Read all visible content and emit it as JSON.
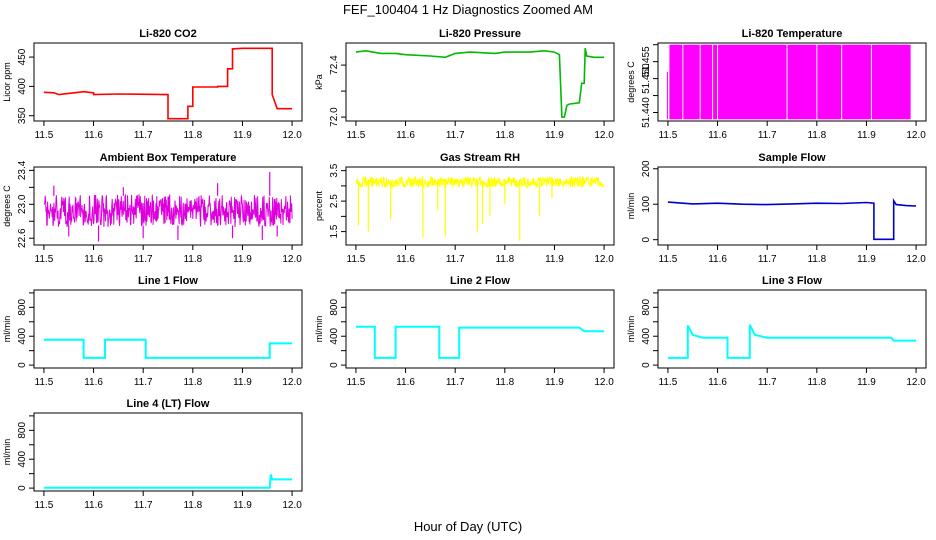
{
  "page": {
    "title": "FEF_100404  1 Hz Diagnostics Zoomed AM",
    "xlabel": "Hour of Day (UTC)"
  },
  "chart_data": [
    {
      "type": "line",
      "title": "Li-820 CO2",
      "ylabel": "Licor ppm",
      "color": "#ff0000",
      "xlim": [
        11.5,
        12.0
      ],
      "ylim": [
        341,
        474
      ],
      "xticks": [
        11.5,
        11.6,
        11.7,
        11.8,
        11.9,
        12.0
      ],
      "yticks": [
        350,
        400,
        450
      ],
      "ytick_labels": [
        "350",
        "400",
        "450"
      ],
      "series": [
        {
          "x": [
            11.5,
            11.52,
            11.53,
            11.57,
            11.58,
            11.6,
            11.6,
            11.65,
            11.75,
            11.75,
            11.76,
            11.79,
            11.79,
            11.8,
            11.8,
            11.85,
            11.85,
            11.87,
            11.87,
            11.88,
            11.88,
            11.9,
            11.96,
            11.96,
            11.97,
            12.0
          ],
          "y": [
            390,
            389,
            386,
            390,
            391,
            389,
            386,
            387,
            386,
            345,
            345,
            345,
            366,
            366,
            399,
            399,
            400,
            400,
            430,
            430,
            464,
            465,
            465,
            386,
            362,
            362
          ]
        }
      ]
    },
    {
      "type": "line",
      "title": "Li-820 Pressure",
      "ylabel": "kPa",
      "color": "#00bb00",
      "xlim": [
        11.5,
        12.0
      ],
      "ylim": [
        71.97,
        72.57
      ],
      "xticks": [
        11.5,
        11.6,
        11.7,
        11.8,
        11.9,
        12.0
      ],
      "yticks": [
        72.0,
        72.2,
        72.4
      ],
      "ytick_labels": [
        "72.0",
        "",
        "72.4"
      ],
      "series": [
        {
          "x": [
            11.5,
            11.52,
            11.55,
            11.58,
            11.6,
            11.65,
            11.68,
            11.7,
            11.73,
            11.78,
            11.8,
            11.85,
            11.88,
            11.9,
            11.91,
            11.915,
            11.92,
            11.925,
            11.93,
            11.95,
            11.955,
            11.96,
            11.962,
            11.965,
            11.98,
            12.0
          ],
          "y": [
            72.5,
            72.51,
            72.49,
            72.49,
            72.48,
            72.47,
            72.46,
            72.49,
            72.5,
            72.49,
            72.5,
            72.5,
            72.51,
            72.5,
            72.48,
            72.0,
            72.0,
            72.09,
            72.1,
            72.11,
            72.26,
            72.26,
            72.53,
            72.47,
            72.46,
            72.46
          ]
        }
      ]
    },
    {
      "type": "area",
      "title": "Li-820 Temperature",
      "ylabel": "degrees C",
      "color": "#ff00ff",
      "xlim": [
        11.5,
        12.0
      ],
      "ylim": [
        51.4375,
        51.4605
      ],
      "xticks": [
        11.5,
        11.6,
        11.7,
        11.8,
        11.9,
        12.0
      ],
      "yticks": [
        51.44,
        51.445,
        51.45,
        51.455,
        51.46
      ],
      "ytick_labels": [
        "51.440",
        "",
        "51.450",
        "51.455",
        ""
      ],
      "series": [
        {
          "x": [
            11.503,
            11.99
          ],
          "y": [
            51.438,
            51.46
          ],
          "gaps_x": [
            11.53,
            11.565,
            11.59,
            11.6,
            11.74,
            11.8,
            11.85,
            11.91,
            11.99
          ]
        }
      ]
    },
    {
      "type": "line",
      "title": "Ambient Box Temperature",
      "ylabel": "degrees C",
      "color": "#dd00dd",
      "xlim": [
        11.5,
        12.0
      ],
      "ylim": [
        22.52,
        23.44
      ],
      "xticks": [
        11.5,
        11.6,
        11.7,
        11.8,
        11.9,
        12.0
      ],
      "yticks": [
        22.6,
        22.8,
        23.0,
        23.2,
        23.4
      ],
      "ytick_labels": [
        "22.6",
        "",
        "23.0",
        "",
        "23.4"
      ],
      "series": [
        {
          "x": [
            11.5,
            12.0
          ],
          "y": [
            22.75,
            23.1
          ],
          "spikes": [
            [
              11.52,
              23.22
            ],
            [
              11.55,
              22.62
            ],
            [
              11.61,
              22.56
            ],
            [
              11.66,
              23.2
            ],
            [
              11.7,
              22.6
            ],
            [
              11.77,
              22.58
            ],
            [
              11.85,
              23.25
            ],
            [
              11.88,
              22.6
            ],
            [
              11.94,
              22.58
            ],
            [
              11.955,
              23.38
            ],
            [
              11.97,
              22.62
            ]
          ]
        }
      ]
    },
    {
      "type": "line",
      "title": "Gas Stream RH",
      "ylabel": "percent",
      "color": "#ffff00",
      "xlim": [
        11.5,
        12.0
      ],
      "ylim": [
        1.06,
        3.62
      ],
      "xticks": [
        11.5,
        11.6,
        11.7,
        11.8,
        11.9,
        12.0
      ],
      "yticks": [
        1.5,
        2.0,
        2.5,
        3.0,
        3.5
      ],
      "ytick_labels": [
        "1.5",
        "",
        "2.5",
        "",
        "3.5"
      ],
      "series": [
        {
          "x": [
            11.5,
            12.0
          ],
          "y": [
            2.95,
            3.3
          ],
          "dips": [
            [
              11.505,
              1.7
            ],
            [
              11.525,
              1.5
            ],
            [
              11.57,
              1.9
            ],
            [
              11.635,
              1.3
            ],
            [
              11.665,
              2.2
            ],
            [
              11.68,
              1.35
            ],
            [
              11.745,
              1.5
            ],
            [
              11.755,
              1.75
            ],
            [
              11.77,
              2.0
            ],
            [
              11.8,
              2.4
            ],
            [
              11.83,
              1.2
            ],
            [
              11.87,
              2.0
            ],
            [
              11.895,
              2.6
            ]
          ]
        }
      ]
    },
    {
      "type": "line",
      "title": "Sample Flow",
      "ylabel": "ml/min",
      "color": "#0000cc",
      "xlim": [
        11.5,
        12.0
      ],
      "ylim": [
        -15,
        205
      ],
      "xticks": [
        11.5,
        11.6,
        11.7,
        11.8,
        11.9,
        12.0
      ],
      "yticks": [
        0,
        100,
        200
      ],
      "ytick_labels": [
        "0",
        "100",
        "200"
      ],
      "series": [
        {
          "x": [
            11.5,
            11.52,
            11.55,
            11.6,
            11.65,
            11.7,
            11.75,
            11.8,
            11.85,
            11.9,
            11.915,
            11.915,
            11.955,
            11.955,
            11.96,
            11.98,
            12.0
          ],
          "y": [
            106,
            104,
            101,
            103,
            100,
            99,
            101,
            103,
            102,
            105,
            103,
            1,
            1,
            110,
            99,
            96,
            95
          ]
        }
      ]
    },
    {
      "type": "line",
      "title": "Line 1 Flow",
      "ylabel": "ml/min",
      "color": "#00ffff",
      "xlim": [
        11.5,
        12.0
      ],
      "ylim": [
        -40,
        1040
      ],
      "xticks": [
        11.5,
        11.6,
        11.7,
        11.8,
        11.9,
        12.0
      ],
      "yticks": [
        0,
        200,
        400,
        600,
        800,
        1000
      ],
      "ytick_labels": [
        "0",
        "",
        "400",
        "",
        "800",
        ""
      ],
      "series": [
        {
          "x": [
            11.5,
            11.58,
            11.58,
            11.623,
            11.623,
            11.705,
            11.705,
            11.955,
            11.955,
            12.0
          ],
          "y": [
            350,
            350,
            100,
            100,
            350,
            350,
            100,
            100,
            300,
            300
          ]
        }
      ]
    },
    {
      "type": "line",
      "title": "Line 2 Flow",
      "ylabel": "ml/min",
      "color": "#00ffff",
      "xlim": [
        11.5,
        12.0
      ],
      "ylim": [
        -40,
        1040
      ],
      "xticks": [
        11.5,
        11.6,
        11.7,
        11.8,
        11.9,
        12.0
      ],
      "yticks": [
        0,
        200,
        400,
        600,
        800,
        1000
      ],
      "ytick_labels": [
        "0",
        "",
        "400",
        "",
        "800",
        ""
      ],
      "series": [
        {
          "x": [
            11.5,
            11.538,
            11.538,
            11.58,
            11.58,
            11.668,
            11.668,
            11.708,
            11.708,
            11.95,
            11.96,
            12.0
          ],
          "y": [
            530,
            530,
            100,
            100,
            530,
            530,
            100,
            100,
            520,
            520,
            470,
            470
          ]
        }
      ]
    },
    {
      "type": "line",
      "title": "Line 3 Flow",
      "ylabel": "ml/min",
      "color": "#00ffff",
      "xlim": [
        11.5,
        12.0
      ],
      "ylim": [
        -40,
        1040
      ],
      "xticks": [
        11.5,
        11.6,
        11.7,
        11.8,
        11.9,
        12.0
      ],
      "yticks": [
        0,
        200,
        400,
        600,
        800,
        1000
      ],
      "ytick_labels": [
        "0",
        "",
        "400",
        "",
        "800",
        ""
      ],
      "series": [
        {
          "x": [
            11.5,
            11.54,
            11.54,
            11.55,
            11.57,
            11.62,
            11.62,
            11.665,
            11.665,
            11.675,
            11.7,
            11.95,
            11.955,
            12.0
          ],
          "y": [
            100,
            100,
            550,
            420,
            380,
            380,
            100,
            100,
            560,
            420,
            380,
            380,
            340,
            340
          ]
        }
      ]
    },
    {
      "type": "line",
      "title": "Line 4 (LT) Flow",
      "ylabel": "ml/min",
      "color": "#00ffff",
      "xlim": [
        11.5,
        12.0
      ],
      "ylim": [
        -40,
        1040
      ],
      "xticks": [
        11.5,
        11.6,
        11.7,
        11.8,
        11.9,
        12.0
      ],
      "yticks": [
        0,
        200,
        400,
        600,
        800,
        1000
      ],
      "ytick_labels": [
        "0",
        "",
        "400",
        "",
        "800",
        ""
      ],
      "series": [
        {
          "x": [
            11.5,
            11.955,
            11.957,
            11.96,
            12.0
          ],
          "y": [
            5,
            5,
            190,
            120,
            120
          ]
        }
      ]
    }
  ]
}
